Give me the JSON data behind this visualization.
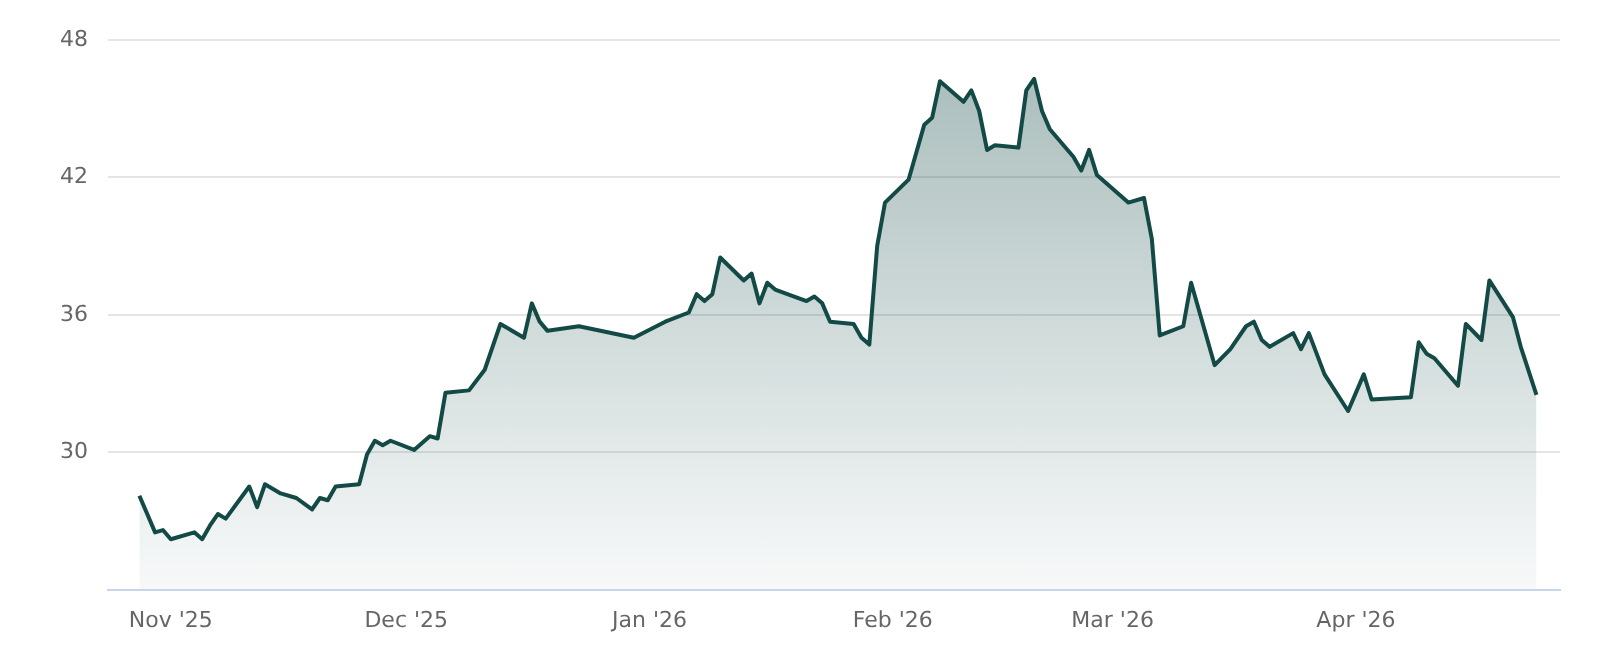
{
  "chart_data": {
    "type": "area",
    "x": [
      "2025-10-28",
      "2025-10-30",
      "2025-10-31",
      "2025-11-01",
      "2025-11-04",
      "2025-11-05",
      "2025-11-06",
      "2025-11-07",
      "2025-11-08",
      "2025-11-11",
      "2025-11-12",
      "2025-11-13",
      "2025-11-15",
      "2025-11-17",
      "2025-11-19",
      "2025-11-20",
      "2025-11-21",
      "2025-11-22",
      "2025-11-25",
      "2025-11-26",
      "2025-11-27",
      "2025-11-28",
      "2025-11-29",
      "2025-12-02",
      "2025-12-04",
      "2025-12-05",
      "2025-12-06",
      "2025-12-09",
      "2025-12-11",
      "2025-12-13",
      "2025-12-16",
      "2025-12-17",
      "2025-12-18",
      "2025-12-19",
      "2025-12-23",
      "2025-12-30",
      "2026-01-03",
      "2026-01-06",
      "2026-01-07",
      "2026-01-08",
      "2026-01-09",
      "2026-01-10",
      "2026-01-13",
      "2026-01-14",
      "2026-01-15",
      "2026-01-16",
      "2026-01-17",
      "2026-01-21",
      "2026-01-22",
      "2026-01-23",
      "2026-01-24",
      "2026-01-27",
      "2026-01-28",
      "2026-01-29",
      "2026-01-30",
      "2026-01-31",
      "2026-02-03",
      "2026-02-05",
      "2026-02-06",
      "2026-02-07",
      "2026-02-10",
      "2026-02-11",
      "2026-02-12",
      "2026-02-13",
      "2026-02-14",
      "2026-02-17",
      "2026-02-18",
      "2026-02-19",
      "2026-02-20",
      "2026-02-21",
      "2026-02-24",
      "2026-02-25",
      "2026-02-26",
      "2026-02-27",
      "2026-03-03",
      "2026-03-05",
      "2026-03-06",
      "2026-03-07",
      "2026-03-10",
      "2026-03-11",
      "2026-03-14",
      "2026-03-16",
      "2026-03-18",
      "2026-03-19",
      "2026-03-20",
      "2026-03-21",
      "2026-03-24",
      "2026-03-25",
      "2026-03-26",
      "2026-03-28",
      "2026-03-31",
      "2026-04-02",
      "2026-04-03",
      "2026-04-08",
      "2026-04-09",
      "2026-04-10",
      "2026-04-11",
      "2026-04-14",
      "2026-04-15",
      "2026-04-17",
      "2026-04-18",
      "2026-04-21",
      "2026-04-22",
      "2026-04-24"
    ],
    "series": [
      {
        "color": "#134a46",
        "values": [
          28.1,
          26.5,
          26.6,
          26.2,
          26.5,
          26.2,
          26.8,
          27.3,
          27.1,
          28.5,
          27.6,
          28.6,
          28.2,
          28.0,
          27.5,
          28.0,
          27.9,
          28.5,
          28.6,
          29.9,
          30.5,
          30.3,
          30.5,
          30.1,
          30.7,
          30.6,
          32.6,
          32.7,
          33.6,
          35.6,
          35.0,
          36.5,
          35.7,
          35.3,
          35.5,
          35.0,
          35.7,
          36.1,
          36.9,
          36.6,
          36.9,
          38.5,
          37.5,
          37.8,
          36.5,
          37.4,
          37.1,
          36.6,
          36.8,
          36.5,
          35.7,
          35.6,
          35.0,
          34.7,
          39.0,
          40.9,
          41.9,
          44.3,
          44.6,
          46.2,
          45.3,
          45.8,
          44.9,
          43.2,
          43.4,
          43.3,
          45.8,
          46.3,
          44.9,
          44.1,
          42.9,
          42.3,
          43.2,
          42.1,
          40.9,
          41.1,
          39.3,
          35.1,
          35.5,
          37.4,
          33.8,
          34.5,
          35.5,
          35.7,
          34.9,
          34.6,
          35.2,
          34.5,
          35.2,
          33.4,
          31.8,
          33.4,
          32.3,
          32.4,
          34.8,
          34.3,
          34.1,
          32.9,
          35.6,
          34.9,
          37.5,
          35.9,
          34.6,
          32.5
        ]
      }
    ],
    "xlim": [
      "2025-10-24",
      "2026-04-27"
    ],
    "xticks": [
      {
        "value": "2025-11-01",
        "label": "Nov '25"
      },
      {
        "value": "2025-12-01",
        "label": "Dec '25"
      },
      {
        "value": "2026-01-01",
        "label": "Jan '26"
      },
      {
        "value": "2026-02-01",
        "label": "Feb '26"
      },
      {
        "value": "2026-03-01",
        "label": "Mar '26"
      },
      {
        "value": "2026-04-01",
        "label": "Apr '26"
      }
    ],
    "ylim": [
      24,
      48
    ],
    "yticks": [
      30,
      36,
      42,
      48
    ],
    "grid": "y",
    "legend": false,
    "marker": "none",
    "line_style": "solid"
  }
}
